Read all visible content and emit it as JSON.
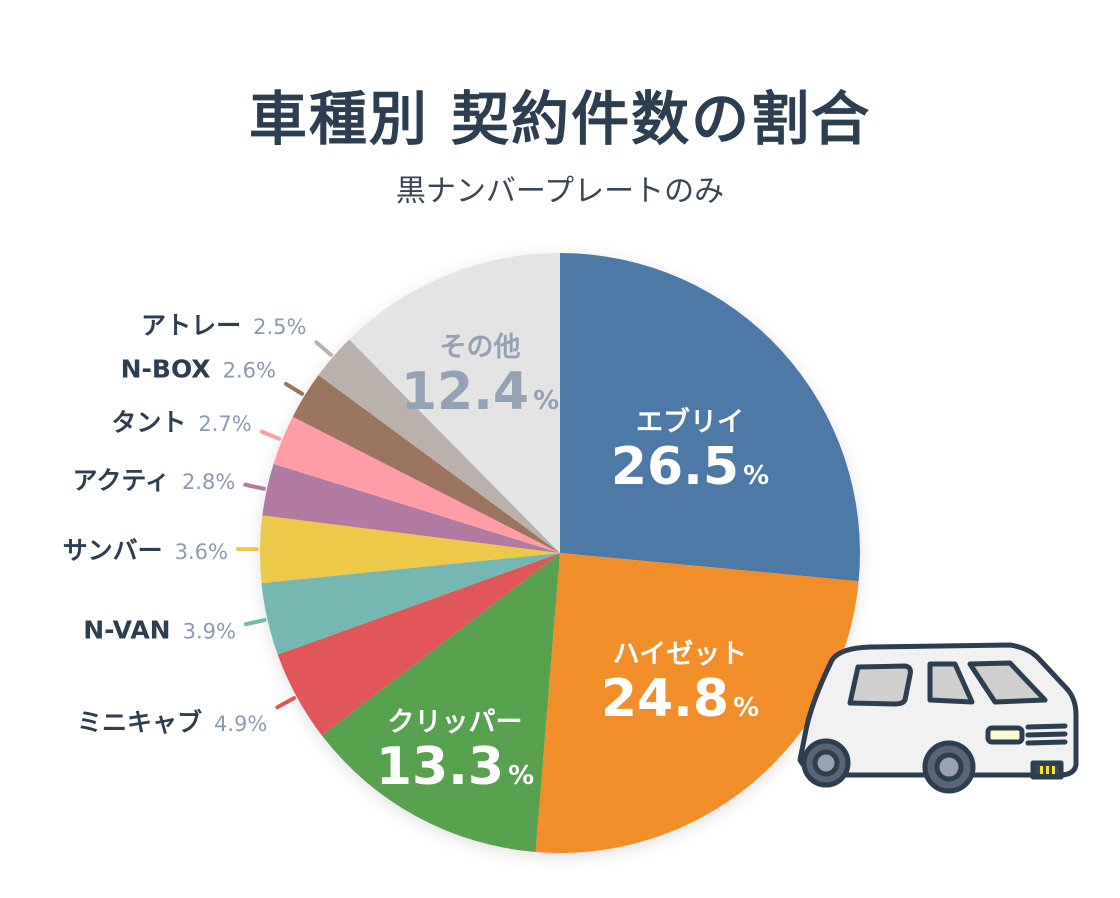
{
  "chart_data": {
    "type": "pie",
    "title": "車種別 契約件数の割合",
    "subtitle": "黒ナンバープレートのみ",
    "unit": "%",
    "start": "top",
    "direction": "clockwise",
    "slices": [
      {
        "label": "エブリイ",
        "value": 26.5,
        "color": "#4e79a7",
        "placement": "inside"
      },
      {
        "label": "ハイゼット",
        "value": 24.8,
        "color": "#f28e2b",
        "placement": "inside"
      },
      {
        "label": "クリッパー",
        "value": 13.3,
        "color": "#59a14f",
        "placement": "inside"
      },
      {
        "label": "ミニキャブ",
        "value": 4.9,
        "color": "#e15759",
        "placement": "outside"
      },
      {
        "label": "N-VAN",
        "value": 3.9,
        "color": "#76b7b2",
        "placement": "outside"
      },
      {
        "label": "サンバー",
        "value": 3.6,
        "color": "#edc948",
        "placement": "outside"
      },
      {
        "label": "アクティ",
        "value": 2.8,
        "color": "#b07aa1",
        "placement": "outside"
      },
      {
        "label": "タント",
        "value": 2.7,
        "color": "#ff9da7",
        "placement": "outside"
      },
      {
        "label": "N-BOX",
        "value": 2.6,
        "color": "#9c755f",
        "placement": "outside"
      },
      {
        "label": "アトレー",
        "value": 2.5,
        "color": "#bab0ac",
        "placement": "outside"
      },
      {
        "label": "その他",
        "value": 12.4,
        "color": "#e4e4e4",
        "placement": "inside"
      }
    ]
  },
  "illustration": "van-icon"
}
